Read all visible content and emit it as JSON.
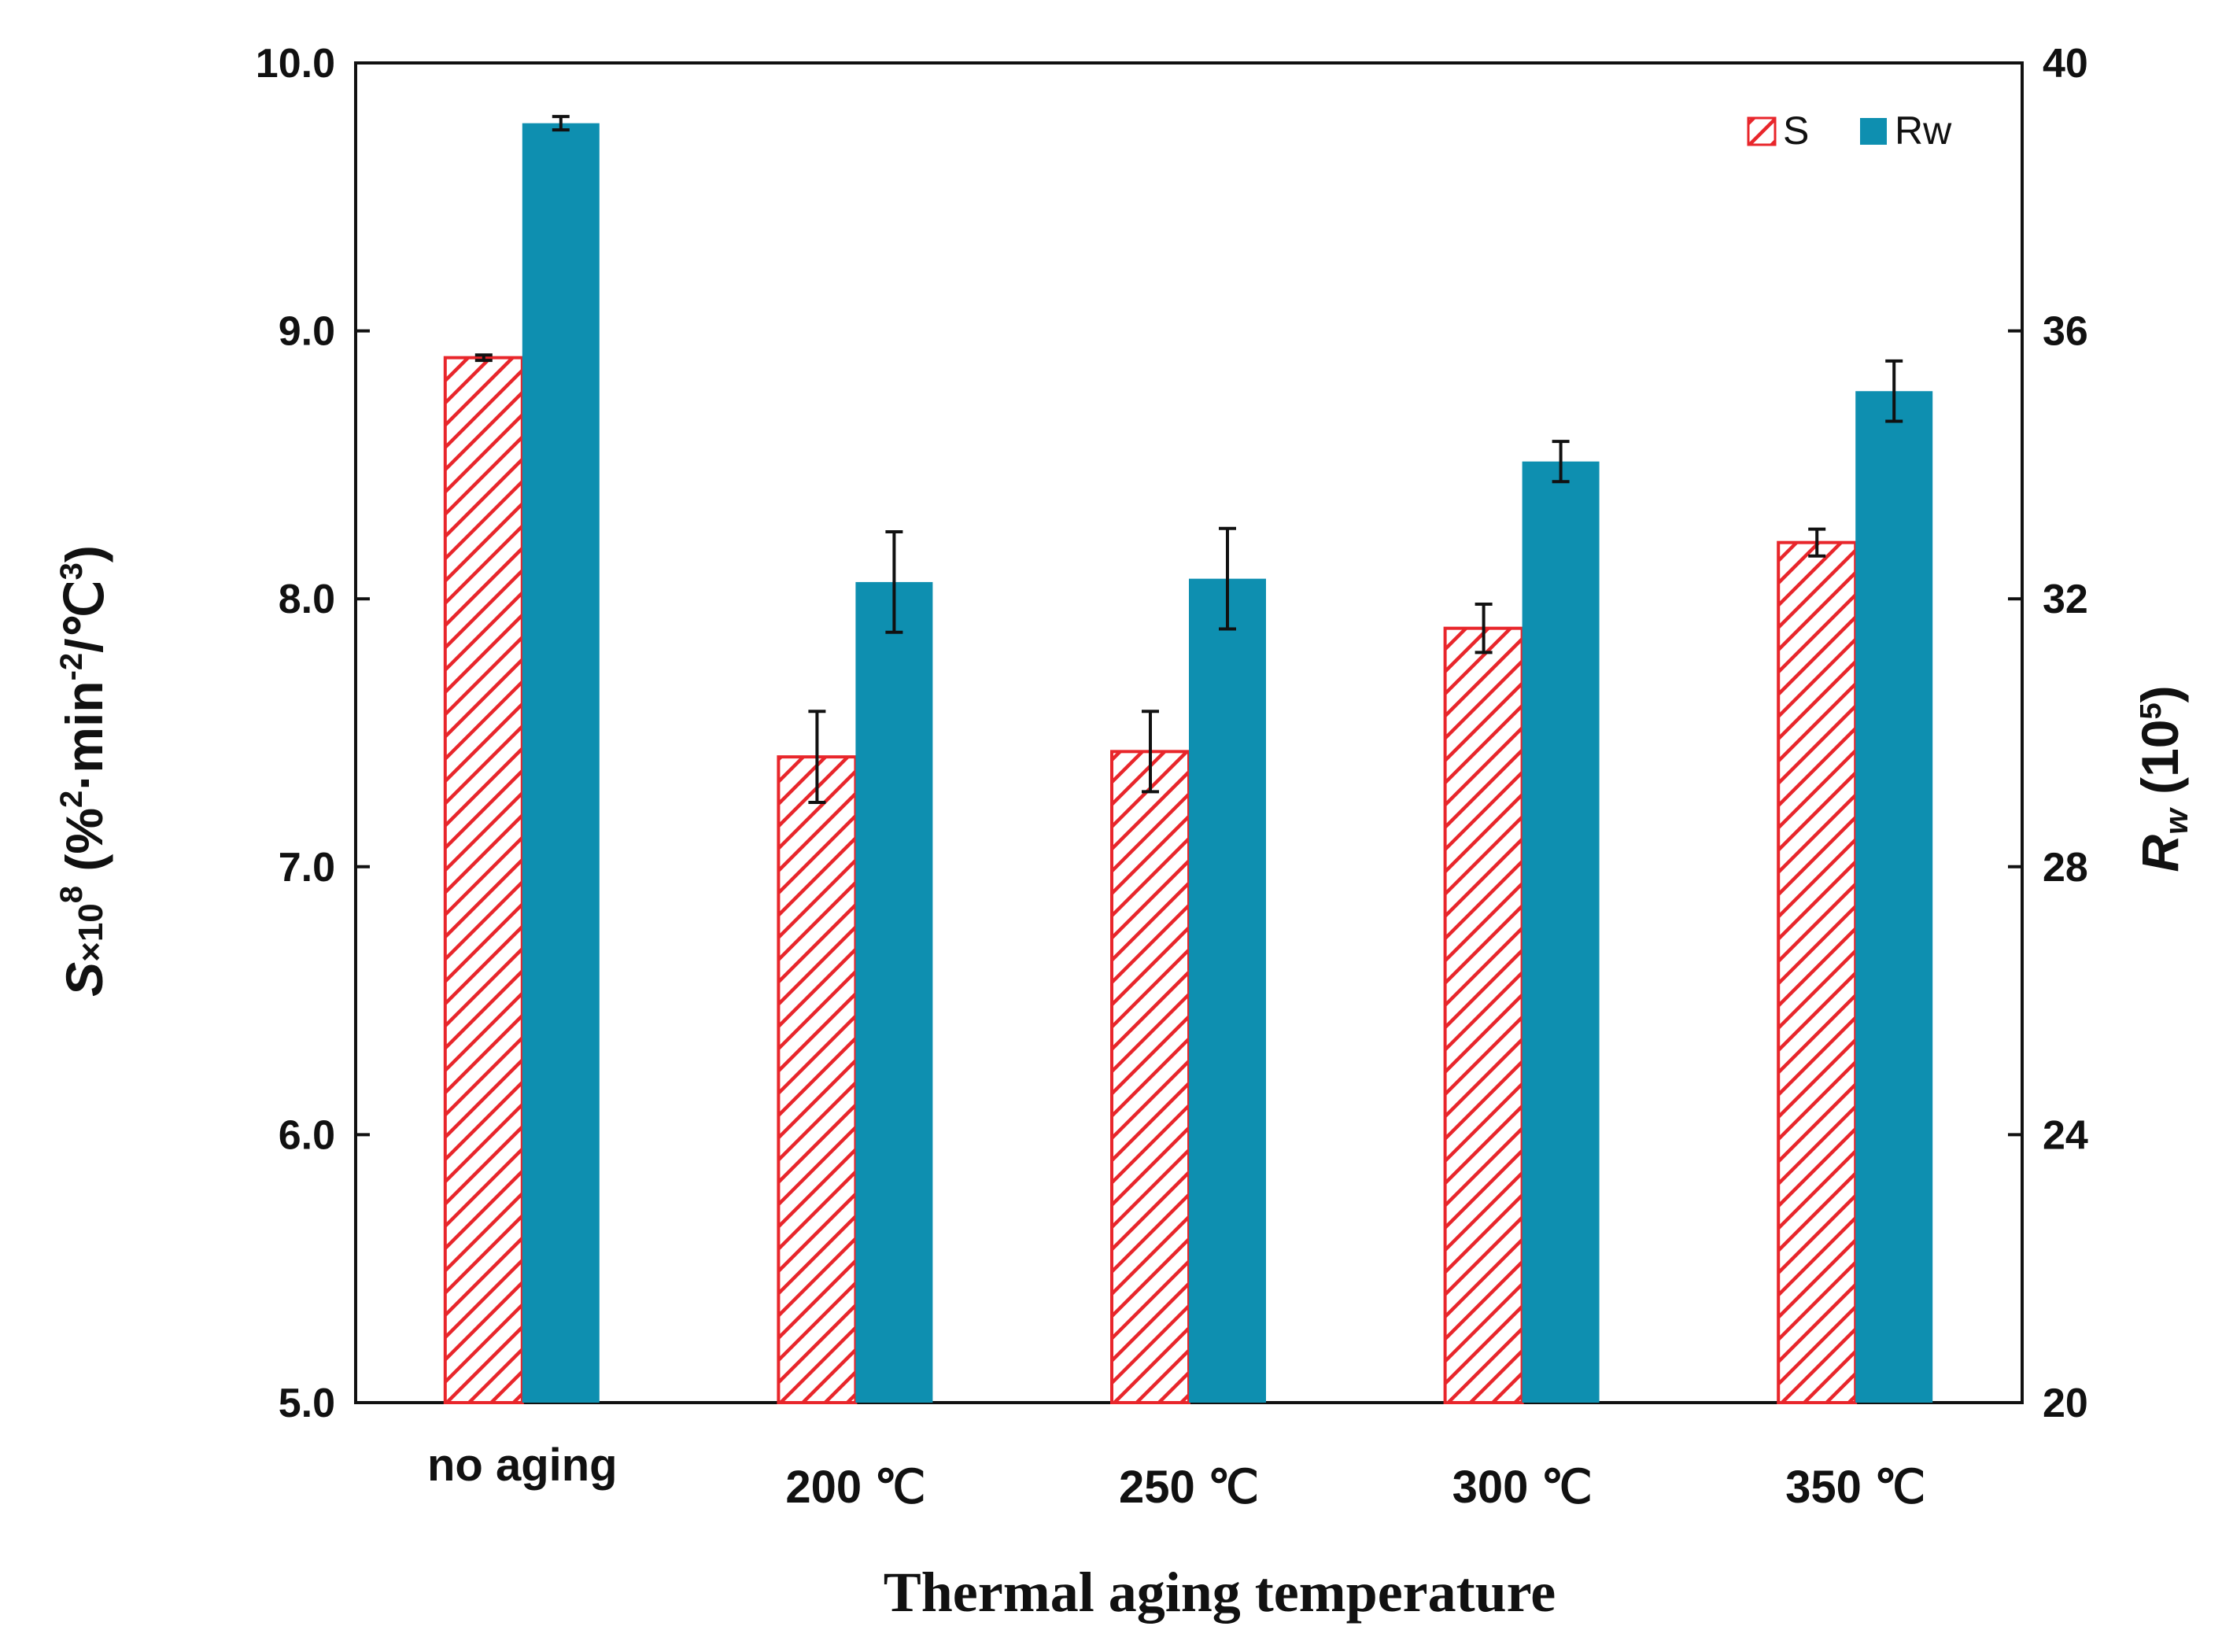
{
  "chart_data": {
    "type": "bar",
    "categories": [
      "no aging",
      "200 ℃",
      "250 ℃",
      "300 ℃",
      "350 ℃"
    ],
    "xlabel": "Thermal aging temperature",
    "ylabel_left": {
      "main": "S",
      "times10": "×10",
      "exp": "8",
      "units_open": " (%",
      "sup2": "2",
      "mid": "·min",
      "supneg2": "-2",
      "tail": "/℃",
      "sup3": "3",
      "close": ")"
    },
    "ylabel_right": {
      "main": "R",
      "sub": "w",
      "units": " (10",
      "sup": "5",
      "close": ")"
    },
    "y_left": {
      "min": 5.0,
      "max": 10.0,
      "ticks": [
        5.0,
        6.0,
        7.0,
        8.0,
        9.0,
        10.0
      ],
      "tick_labels": [
        "5.0",
        "6.0",
        "7.0",
        "8.0",
        "9.0",
        "10.0"
      ]
    },
    "y_right": {
      "min": 20,
      "max": 40,
      "ticks": [
        20,
        24,
        28,
        32,
        36,
        40
      ],
      "tick_labels": [
        "20",
        "24",
        "28",
        "32",
        "36",
        "40"
      ]
    },
    "series": [
      {
        "name": "S",
        "axis": "left",
        "values": [
          8.9,
          7.41,
          7.43,
          7.89,
          8.21
        ],
        "errors": [
          0.01,
          0.17,
          0.15,
          0.09,
          0.05
        ],
        "color": "#e8262b",
        "fill": "hatch"
      },
      {
        "name": "Rw",
        "axis": "right",
        "values": [
          39.1,
          32.25,
          32.3,
          34.05,
          35.1
        ],
        "errors": [
          0.1,
          0.75,
          0.75,
          0.3,
          0.45
        ],
        "color": "#0e8fb0",
        "fill": "solid"
      }
    ],
    "legend": {
      "position": "top-right",
      "entries": [
        "S",
        "Rw"
      ]
    },
    "grid": false
  }
}
